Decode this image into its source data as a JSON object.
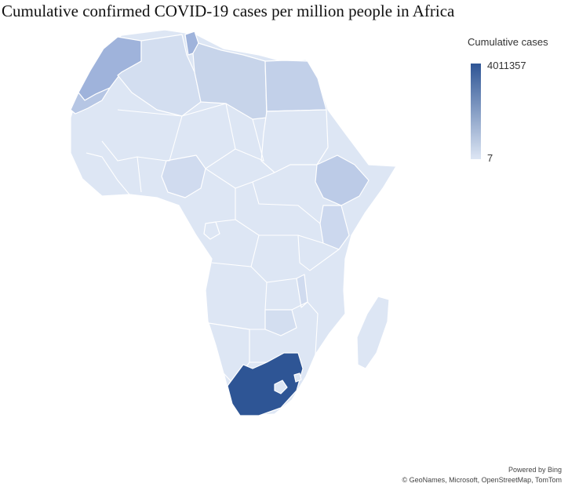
{
  "title": "Cumulative confirmed COVID-19 cases per million people in Africa",
  "legend": {
    "title": "Cumulative cases",
    "max_label": "4011357",
    "min_label": "7",
    "color_max": "#2e5595",
    "color_min": "#dde6f4"
  },
  "credits": {
    "line1": "Powered by Bing",
    "line2": "© GeoNames, Microsoft, OpenStreetMap, TomTom"
  },
  "colors": {
    "base": "#dde6f4",
    "light": "#d3def0",
    "medium": "#b6c6e4",
    "strong": "#9fb3db",
    "highlight": "#2e5595"
  }
}
